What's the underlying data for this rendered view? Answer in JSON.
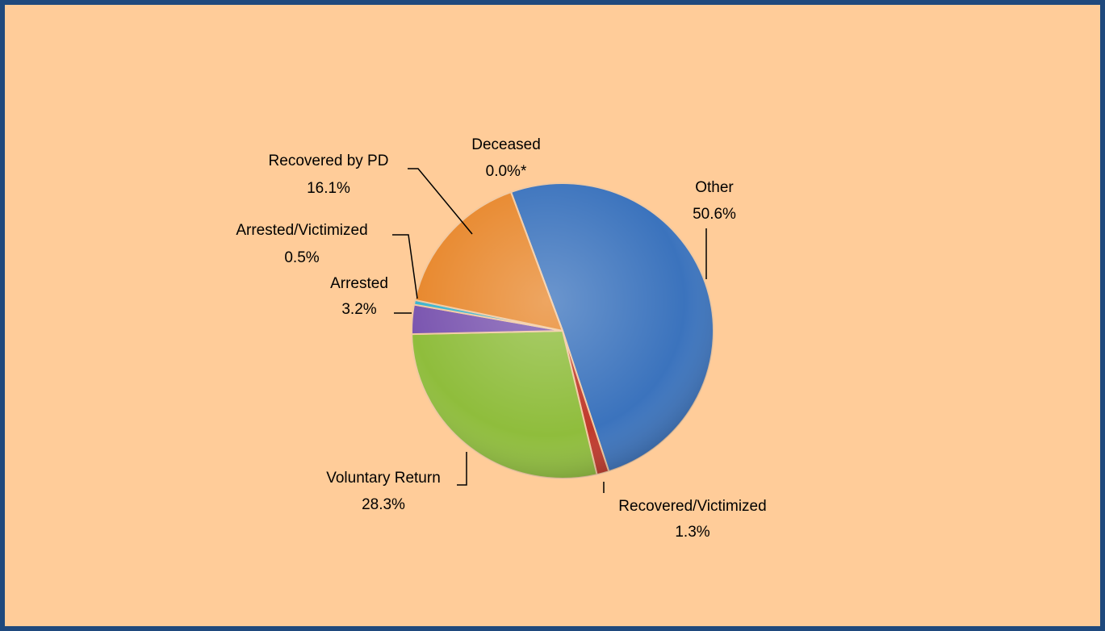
{
  "chart_data": {
    "type": "pie",
    "categories": [
      "Other",
      "Recovered/Victimized",
      "Voluntary Return",
      "Arrested",
      "Arrested/Victimized",
      "Recovered by PD",
      "Deceased"
    ],
    "values": [
      50.6,
      1.3,
      28.3,
      3.2,
      0.5,
      16.1,
      0.0
    ],
    "value_labels": [
      "50.6%",
      "1.3%",
      "28.3%",
      "3.2%",
      "0.5%",
      "16.1%",
      "0.0%*"
    ],
    "colors": [
      "#3b73bd",
      "#c0392b",
      "#8fbd3c",
      "#7b56b0",
      "#3cb4cf",
      "#e8882d",
      "#bfbfbf"
    ]
  }
}
